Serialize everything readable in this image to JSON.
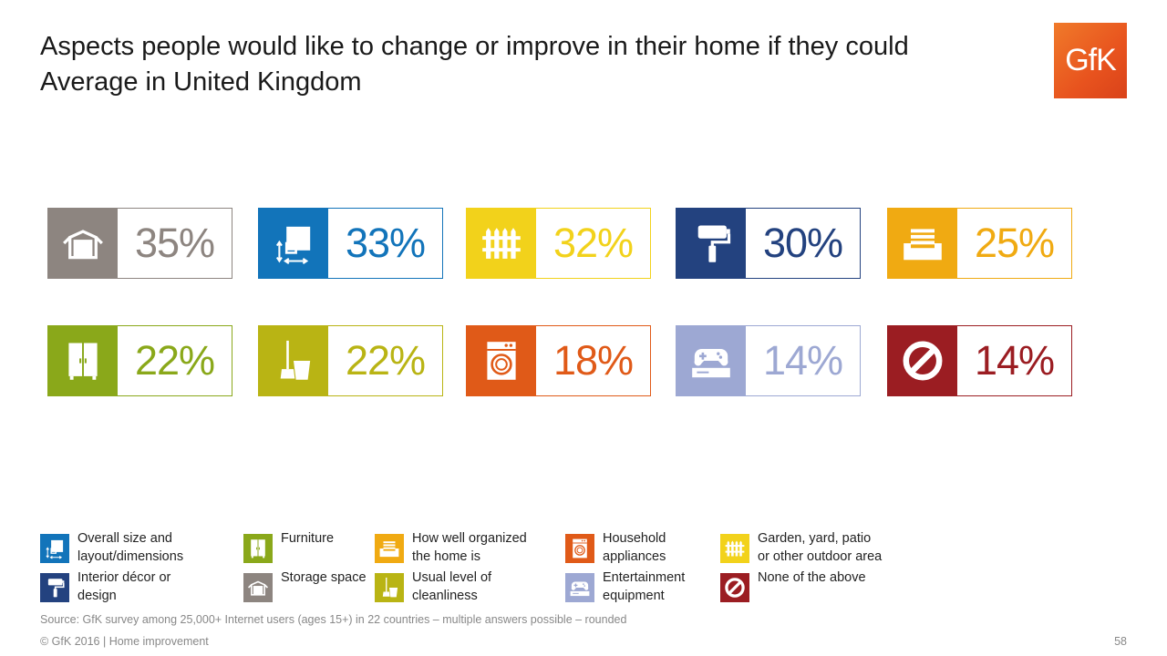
{
  "header": {
    "title_line1": "Aspects people would like to change or improve in their home if they could",
    "title_line2": "Average in United Kingdom",
    "logo_text": "GfK",
    "logo_color": "#e8531e"
  },
  "tiles": [
    {
      "value": "35%",
      "color": "#8d8580",
      "icon": "storage-box-icon"
    },
    {
      "value": "33%",
      "color": "#1274ba",
      "icon": "layout-dimensions-icon"
    },
    {
      "value": "32%",
      "color": "#f2d21b",
      "icon": "fence-icon"
    },
    {
      "value": "30%",
      "color": "#23427f",
      "icon": "paint-roller-icon"
    },
    {
      "value": "25%",
      "color": "#f0aa12",
      "icon": "inbox-tray-icon"
    },
    {
      "value": "22%",
      "color": "#8aa81a",
      "icon": "wardrobe-icon"
    },
    {
      "value": "22%",
      "color": "#b9b414",
      "icon": "mop-bucket-icon"
    },
    {
      "value": "18%",
      "color": "#e05a18",
      "icon": "washing-machine-icon"
    },
    {
      "value": "14%",
      "color": "#9da8d3",
      "icon": "game-console-icon"
    },
    {
      "value": "14%",
      "color": "#9b1d22",
      "icon": "prohibited-icon"
    }
  ],
  "legend": [
    {
      "label": "Overall size and layout/dimensions",
      "color": "#1274ba",
      "icon": "layout-dimensions-icon"
    },
    {
      "label": "Furniture",
      "color": "#8aa81a",
      "icon": "wardrobe-icon"
    },
    {
      "label": "How well organized the home is",
      "color": "#f0aa12",
      "icon": "inbox-tray-icon"
    },
    {
      "label": "Household appliances",
      "color": "#e05a18",
      "icon": "washing-machine-icon"
    },
    {
      "label": "Garden, yard, patio or other outdoor area",
      "color": "#f2d21b",
      "icon": "fence-icon"
    },
    {
      "label": "Interior décor or design",
      "color": "#23427f",
      "icon": "paint-roller-icon"
    },
    {
      "label": "Storage space",
      "color": "#8d8580",
      "icon": "storage-box-icon"
    },
    {
      "label": "Usual level of cleanliness",
      "color": "#b9b414",
      "icon": "mop-bucket-icon"
    },
    {
      "label": "Entertainment equipment",
      "color": "#9da8d3",
      "icon": "game-console-icon"
    },
    {
      "label": "None of the above",
      "color": "#9b1d22",
      "icon": "prohibited-icon"
    }
  ],
  "footer": {
    "source": "Source: GfK survey among 25,000+ Internet users (ages 15+) in 22 countries – multiple answers possible – rounded",
    "copyright": "© GfK 2016 | Home improvement",
    "page_number": "58"
  }
}
